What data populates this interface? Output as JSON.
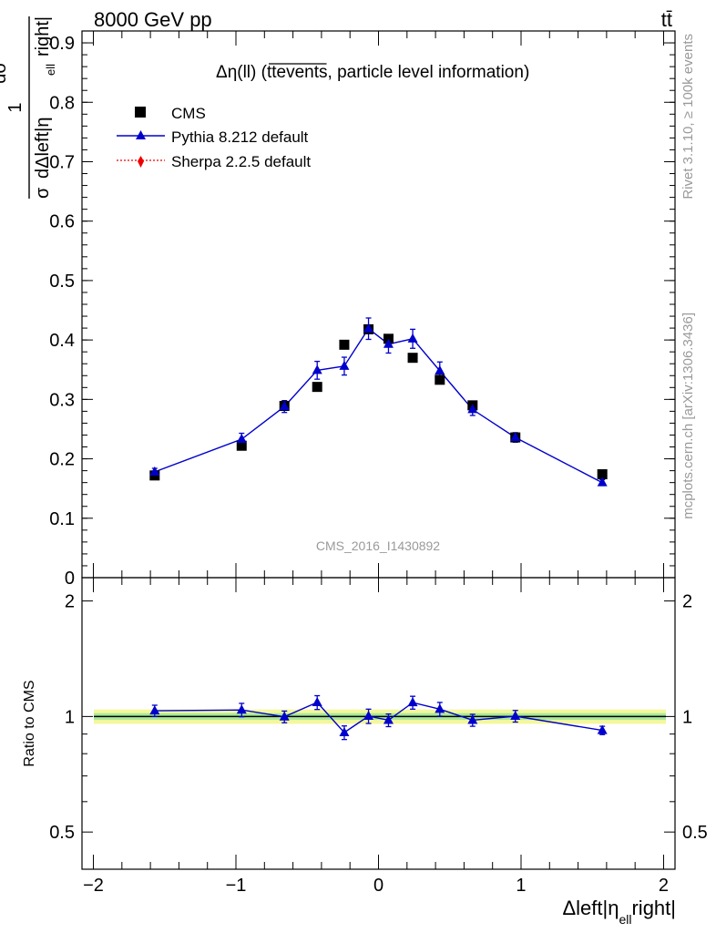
{
  "header": {
    "left": "8000 GeV pp",
    "right": "tt̄"
  },
  "side_labels": {
    "rivet": "Rivet 3.1.10, ≥ 100k events",
    "mcplots": "mcplots.cern.ch [arXiv:1306.3436]"
  },
  "analysis_id": "CMS_2016_I1430892",
  "chart_data": [
    {
      "type": "scatter",
      "panel": "main",
      "title_parts": {
        "prefix": "Δη(ll) (",
        "over": "ttevents",
        "suffix": ", particle level information)"
      },
      "ylabel_parts": {
        "num": "1",
        "den_sigma": "σ",
        "dsigma": "dσ",
        "dvar": "dΔleft|η",
        "sub": "ell",
        "right": "right|"
      },
      "ylim": [
        0,
        0.92
      ],
      "xlim": [
        -2.08,
        2.08
      ],
      "yticks": [
        0,
        0.1,
        0.2,
        0.3,
        0.4,
        0.5,
        0.6,
        0.7,
        0.8,
        0.9
      ],
      "ytick_labels": [
        "0",
        "0.1",
        "0.2",
        "0.3",
        "0.4",
        "0.5",
        "0.6",
        "0.7",
        "0.8",
        "0.9"
      ],
      "legend_position": "top-left",
      "series": [
        {
          "name": "CMS",
          "marker": "square",
          "color": "#000000",
          "x": [
            -1.57,
            -0.96,
            -0.66,
            -0.43,
            -0.24,
            -0.07,
            0.07,
            0.24,
            0.43,
            0.66,
            0.96,
            1.57
          ],
          "y": [
            0.172,
            0.222,
            0.289,
            0.321,
            0.392,
            0.418,
            0.402,
            0.37,
            0.333,
            0.29,
            0.236,
            0.174
          ]
        },
        {
          "name": "Pythia 8.212 default",
          "marker": "triangle",
          "color": "#0000cc",
          "x": [
            -1.57,
            -0.96,
            -0.66,
            -0.43,
            -0.24,
            -0.07,
            0.07,
            0.24,
            0.43,
            0.66,
            0.96,
            1.57
          ],
          "y": [
            0.178,
            0.233,
            0.288,
            0.349,
            0.356,
            0.419,
            0.393,
            0.402,
            0.348,
            0.283,
            0.236,
            0.16
          ],
          "err": [
            0.006,
            0.01,
            0.01,
            0.015,
            0.015,
            0.018,
            0.015,
            0.016,
            0.015,
            0.01,
            0.008,
            0.005
          ]
        },
        {
          "name": "Sherpa 2.2.5 default",
          "marker": "diamond",
          "color": "#ee0000",
          "x": [],
          "y": []
        }
      ]
    },
    {
      "type": "scatter",
      "panel": "ratio",
      "ylabel": "Ratio to CMS",
      "xlabel_parts": {
        "main": "Δleft|η",
        "sub": "ell",
        "end": "right|"
      },
      "ylim": [
        0.4,
        2.3
      ],
      "yscale": "log",
      "yticks": [
        0.5,
        1,
        2
      ],
      "ytick_labels": [
        "0.5",
        "1",
        "2"
      ],
      "xticks": [
        -2,
        -1,
        0,
        1,
        2
      ],
      "xtick_labels": [
        "−2",
        "−1",
        "0",
        "1",
        "2"
      ],
      "band": {
        "inner": [
          0.98,
          1.02
        ],
        "outer": [
          0.957,
          1.043
        ],
        "inner_color": "#a8e89a",
        "outer_color": "#f4f79c"
      },
      "series": [
        {
          "name": "Pythia 8.212 default",
          "marker": "triangle",
          "color": "#0000cc",
          "x": [
            -1.57,
            -0.96,
            -0.66,
            -0.43,
            -0.24,
            -0.07,
            0.07,
            0.24,
            0.43,
            0.66,
            0.96,
            1.57
          ],
          "y": [
            1.035,
            1.04,
            0.998,
            1.088,
            0.908,
            1.002,
            0.978,
            1.087,
            1.045,
            0.978,
            1.002,
            0.92
          ],
          "err": [
            0.035,
            0.042,
            0.035,
            0.045,
            0.037,
            0.043,
            0.037,
            0.042,
            0.043,
            0.035,
            0.035,
            0.023
          ]
        }
      ]
    }
  ]
}
